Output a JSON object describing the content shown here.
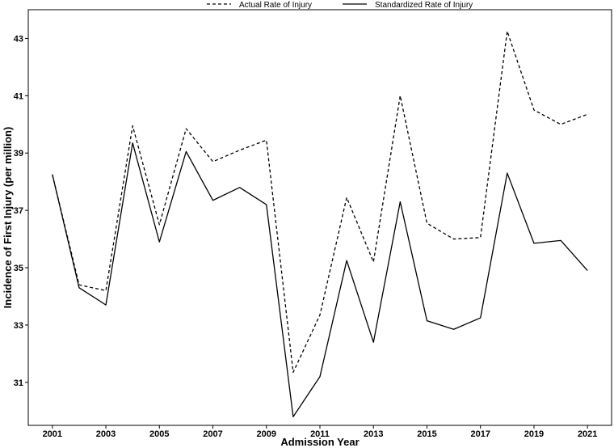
{
  "chart_data": {
    "type": "line",
    "title": "",
    "xlabel": "Admission Year",
    "ylabel": "Incidence of First Injury (per million)",
    "x": [
      2001,
      2002,
      2003,
      2004,
      2005,
      2006,
      2007,
      2008,
      2009,
      2010,
      2011,
      2012,
      2013,
      2014,
      2015,
      2016,
      2017,
      2018,
      2019,
      2020,
      2021
    ],
    "xticks": [
      "2001",
      "2003",
      "2005",
      "2007",
      "2009",
      "2011",
      "2013",
      "2015",
      "2017",
      "2019",
      "2021"
    ],
    "yticks": [
      "31",
      "33",
      "35",
      "37",
      "39",
      "41",
      "43"
    ],
    "xlim": [
      2000.1,
      2021.9
    ],
    "ylim": [
      29.5,
      44.0
    ],
    "grid": false,
    "legend_position": "top",
    "series": [
      {
        "name": "Actual Rate of Injury",
        "dash": "dashed",
        "color": "#000000",
        "values": [
          38.25,
          34.4,
          34.2,
          39.95,
          36.5,
          39.85,
          38.7,
          39.1,
          39.45,
          31.35,
          33.35,
          37.45,
          35.2,
          41.0,
          36.55,
          36.0,
          36.05,
          43.25,
          40.5,
          40.0,
          40.35
        ]
      },
      {
        "name": "Standardized Rate of Injury",
        "dash": "solid",
        "color": "#000000",
        "values": [
          38.25,
          34.3,
          33.7,
          39.35,
          35.9,
          39.05,
          37.35,
          37.8,
          37.2,
          29.8,
          31.2,
          35.25,
          32.4,
          37.3,
          33.15,
          32.85,
          33.25,
          38.3,
          35.85,
          35.95,
          34.9
        ]
      }
    ]
  }
}
